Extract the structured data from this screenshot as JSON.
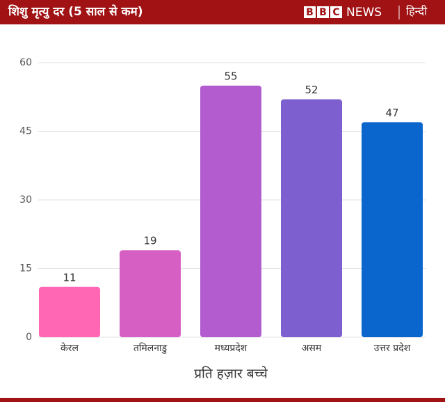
{
  "header": {
    "logo": "BBC",
    "brand": "NEWS",
    "language": "हिन्दी"
  },
  "chart_data": {
    "type": "bar",
    "title": "शिशु मृत्यु दर (5 साल से कम)",
    "categories": [
      "केरल",
      "तमिलनाडु",
      "मध्यप्रदेश",
      "असम",
      "उत्तर प्रदेश"
    ],
    "values": [
      11,
      19,
      55,
      52,
      47
    ],
    "colors": [
      "#ff66b3",
      "#d65fc4",
      "#b25ccf",
      "#7d5fd0",
      "#0a66cc"
    ],
    "x_label": "प्रति हज़ार बच्चे",
    "ylim": [
      0,
      60
    ],
    "yticks": [
      0,
      15,
      30,
      45,
      60
    ],
    "grid": true
  }
}
